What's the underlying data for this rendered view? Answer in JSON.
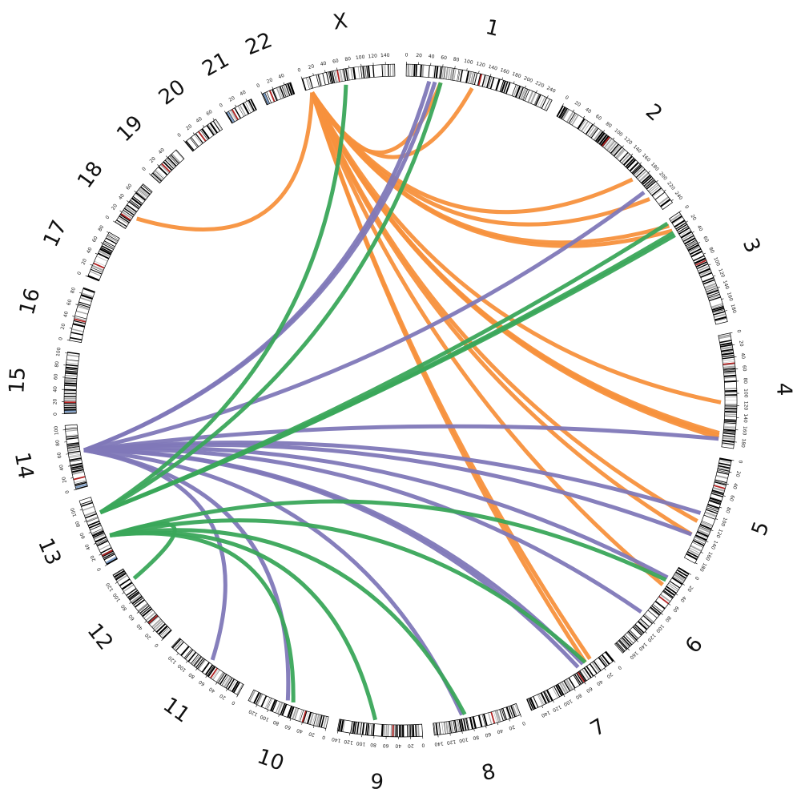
{
  "colors": {
    "band_light": "#ffffff",
    "band_gray": "#a8a8a8",
    "band_dark": "#000000",
    "centromere": "#b22222",
    "stalk": "#7f9fc8",
    "link_orange": "#f7913d",
    "link_purple": "#8078b8",
    "link_green": "#3aa65a",
    "label": "#111111"
  },
  "chromosomes": [
    {
      "name": "1",
      "length": 249,
      "centromere": 125
    },
    {
      "name": "2",
      "length": 243,
      "centromere": 93
    },
    {
      "name": "3",
      "length": 198,
      "centromere": 91
    },
    {
      "name": "4",
      "length": 191,
      "centromere": 50
    },
    {
      "name": "5",
      "length": 181,
      "centromere": 48
    },
    {
      "name": "6",
      "length": 171,
      "centromere": 60
    },
    {
      "name": "7",
      "length": 159,
      "centromere": 60
    },
    {
      "name": "8",
      "length": 146,
      "centromere": 45
    },
    {
      "name": "9",
      "length": 141,
      "centromere": 49
    },
    {
      "name": "10",
      "length": 136,
      "centromere": 40
    },
    {
      "name": "11",
      "length": 135,
      "centromere": 53
    },
    {
      "name": "12",
      "length": 134,
      "centromere": 35
    },
    {
      "name": "13",
      "length": 115,
      "centromere": 17
    },
    {
      "name": "14",
      "length": 107,
      "centromere": 17
    },
    {
      "name": "15",
      "length": 102,
      "centromere": 19
    },
    {
      "name": "16",
      "length": 90,
      "centromere": 36
    },
    {
      "name": "17",
      "length": 81,
      "centromere": 24
    },
    {
      "name": "18",
      "length": 78,
      "centromere": 17
    },
    {
      "name": "19",
      "length": 59,
      "centromere": 26
    },
    {
      "name": "20",
      "length": 63,
      "centromere": 28
    },
    {
      "name": "21",
      "length": 48,
      "centromere": 12
    },
    {
      "name": "22",
      "length": 51,
      "centromere": 14
    },
    {
      "name": "X",
      "length": 155,
      "centromere": 60
    }
  ],
  "links": [
    {
      "color": "orange",
      "a": [
        "X",
        10
      ],
      "b": [
        "1",
        60
      ]
    },
    {
      "color": "orange",
      "a": [
        "X",
        10
      ],
      "b": [
        "1",
        115
      ]
    },
    {
      "color": "orange",
      "a": [
        "X",
        10
      ],
      "b": [
        "2",
        170
      ]
    },
    {
      "color": "orange",
      "a": [
        "X",
        10
      ],
      "b": [
        "2",
        215
      ]
    },
    {
      "color": "orange",
      "a": [
        "X",
        10
      ],
      "b": [
        "3",
        10
      ]
    },
    {
      "color": "orange",
      "a": [
        "X",
        10
      ],
      "b": [
        "3",
        20
      ]
    },
    {
      "color": "orange",
      "a": [
        "X",
        10
      ],
      "b": [
        "4",
        115
      ]
    },
    {
      "color": "orange",
      "a": [
        "X",
        10
      ],
      "b": [
        "4",
        168
      ]
    },
    {
      "color": "orange",
      "a": [
        "X",
        10
      ],
      "b": [
        "4",
        172
      ]
    },
    {
      "color": "orange",
      "a": [
        "X",
        10
      ],
      "b": [
        "4",
        176
      ]
    },
    {
      "color": "orange",
      "a": [
        "X",
        10
      ],
      "b": [
        "5",
        115
      ]
    },
    {
      "color": "orange",
      "a": [
        "X",
        10
      ],
      "b": [
        "5",
        140
      ]
    },
    {
      "color": "orange",
      "a": [
        "X",
        10
      ],
      "b": [
        "6",
        40
      ]
    },
    {
      "color": "orange",
      "a": [
        "X",
        10
      ],
      "b": [
        "7",
        30
      ]
    },
    {
      "color": "orange",
      "a": [
        "X",
        10
      ],
      "b": [
        "7",
        40
      ]
    },
    {
      "color": "orange",
      "a": [
        "X",
        10
      ],
      "b": [
        "18",
        25
      ]
    },
    {
      "color": "purple",
      "a": [
        "14",
        62
      ],
      "b": [
        "1",
        40
      ]
    },
    {
      "color": "purple",
      "a": [
        "14",
        62
      ],
      "b": [
        "1",
        50
      ]
    },
    {
      "color": "purple",
      "a": [
        "14",
        62
      ],
      "b": [
        "2",
        200
      ]
    },
    {
      "color": "purple",
      "a": [
        "14",
        62
      ],
      "b": [
        "4",
        178
      ]
    },
    {
      "color": "purple",
      "a": [
        "14",
        62
      ],
      "b": [
        "5",
        100
      ]
    },
    {
      "color": "purple",
      "a": [
        "14",
        62
      ],
      "b": [
        "5",
        140
      ]
    },
    {
      "color": "purple",
      "a": [
        "14",
        62
      ],
      "b": [
        "6",
        25
      ]
    },
    {
      "color": "purple",
      "a": [
        "14",
        62
      ],
      "b": [
        "6",
        100
      ]
    },
    {
      "color": "purple",
      "a": [
        "14",
        62
      ],
      "b": [
        "7",
        45
      ]
    },
    {
      "color": "purple",
      "a": [
        "14",
        62
      ],
      "b": [
        "7",
        55
      ]
    },
    {
      "color": "purple",
      "a": [
        "14",
        62
      ],
      "b": [
        "8",
        95
      ]
    },
    {
      "color": "purple",
      "a": [
        "14",
        62
      ],
      "b": [
        "10",
        75
      ]
    },
    {
      "color": "purple",
      "a": [
        "14",
        62
      ],
      "b": [
        "11",
        68
      ]
    },
    {
      "color": "green",
      "a": [
        "13",
        85
      ],
      "b": [
        "X",
        70
      ]
    },
    {
      "color": "green",
      "a": [
        "13",
        85
      ],
      "b": [
        "1",
        60
      ]
    },
    {
      "color": "green",
      "a": [
        "13",
        85
      ],
      "b": [
        "3",
        5
      ]
    },
    {
      "color": "green",
      "a": [
        "13",
        85
      ],
      "b": [
        "3",
        24
      ]
    },
    {
      "color": "green",
      "a": [
        "13",
        85
      ],
      "b": [
        "3",
        29
      ]
    },
    {
      "color": "green",
      "a": [
        "13",
        42
      ],
      "b": [
        "6",
        30
      ]
    },
    {
      "color": "green",
      "a": [
        "13",
        42
      ],
      "b": [
        "7",
        40
      ]
    },
    {
      "color": "green",
      "a": [
        "13",
        42
      ],
      "b": [
        "8",
        90
      ]
    },
    {
      "color": "green",
      "a": [
        "13",
        42
      ],
      "b": [
        "9",
        80
      ]
    },
    {
      "color": "green",
      "a": [
        "13",
        42
      ],
      "b": [
        "10",
        65
      ]
    },
    {
      "color": "green",
      "a": [
        "13",
        42
      ],
      "b": [
        "12",
        110
      ]
    }
  ]
}
